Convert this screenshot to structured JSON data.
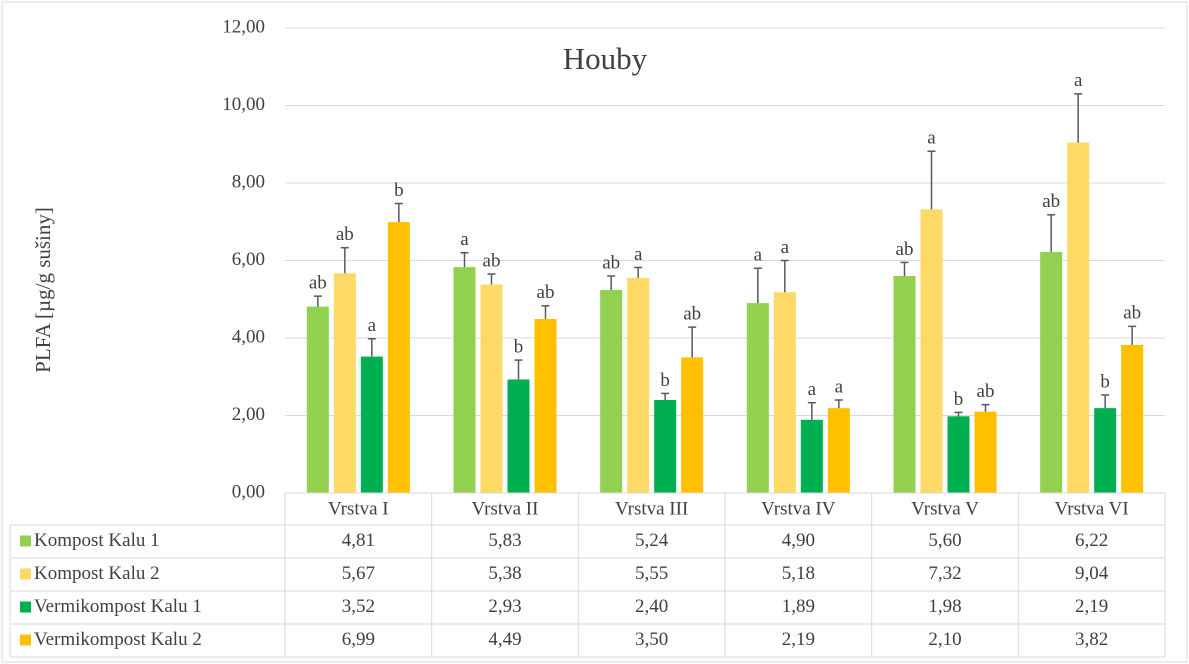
{
  "chart_data": {
    "type": "bar",
    "title": "Houby",
    "ylabel": "PLFA [µg/g sušiny]",
    "categories": [
      "Vrstva I",
      "Vrstva II",
      "Vrstva III",
      "Vrstva IV",
      "Vrstva V",
      "Vrstva VI"
    ],
    "ylim": [
      0,
      12
    ],
    "yticks": [
      {
        "value": 0,
        "label": "0,00"
      },
      {
        "value": 2,
        "label": "2,00"
      },
      {
        "value": 4,
        "label": "4,00"
      },
      {
        "value": 6,
        "label": "6,00"
      },
      {
        "value": 8,
        "label": "8,00"
      },
      {
        "value": 10,
        "label": "10,00"
      },
      {
        "value": 12,
        "label": "12,00"
      }
    ],
    "grid": true,
    "series": [
      {
        "name": "Kompost Kalu 1",
        "color": "#92d050",
        "values": [
          4.81,
          5.83,
          5.24,
          4.9,
          5.6,
          6.22
        ],
        "value_labels": [
          "4,81",
          "5,83",
          "5,24",
          "4,90",
          "5,60",
          "6,22"
        ],
        "errors": [
          0.27,
          0.37,
          0.36,
          0.9,
          0.35,
          0.96
        ],
        "letters": [
          "ab",
          "a",
          "ab",
          "a",
          "ab",
          "ab"
        ]
      },
      {
        "name": "Kompost Kalu 2",
        "color": "#ffd966",
        "values": [
          5.67,
          5.38,
          5.55,
          5.18,
          7.32,
          9.04
        ],
        "value_labels": [
          "5,67",
          "5,38",
          "5,55",
          "5,18",
          "7,32",
          "9,04"
        ],
        "errors": [
          0.66,
          0.27,
          0.27,
          0.82,
          1.5,
          1.26
        ],
        "letters": [
          "ab",
          "ab",
          "a",
          "a",
          "a",
          "a"
        ]
      },
      {
        "name": "Vermikompost Kalu 1",
        "color": "#00b050",
        "values": [
          3.52,
          2.93,
          2.4,
          1.89,
          1.98,
          2.19
        ],
        "value_labels": [
          "3,52",
          "2,93",
          "2,40",
          "1,89",
          "1,98",
          "2,19"
        ],
        "errors": [
          0.46,
          0.5,
          0.17,
          0.44,
          0.1,
          0.34
        ],
        "letters": [
          "a",
          "b",
          "b",
          "a",
          "b",
          "b"
        ]
      },
      {
        "name": "Vermikompost Kalu 2",
        "color": "#ffc000",
        "values": [
          6.99,
          4.49,
          3.5,
          2.19,
          2.1,
          3.82
        ],
        "value_labels": [
          "6,99",
          "4,49",
          "3,50",
          "2,19",
          "2,10",
          "3,82"
        ],
        "errors": [
          0.48,
          0.34,
          0.78,
          0.21,
          0.18,
          0.48
        ],
        "letters": [
          "b",
          "ab",
          "ab",
          "a",
          "ab",
          "ab"
        ]
      }
    ]
  }
}
